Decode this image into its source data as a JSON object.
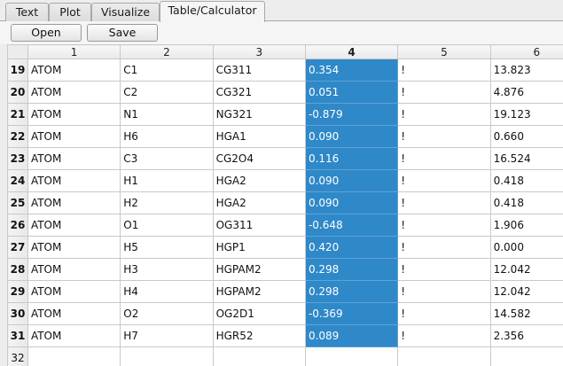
{
  "tabs": [
    {
      "label": "Text"
    },
    {
      "label": "Plot"
    },
    {
      "label": "Visualize"
    },
    {
      "label": "Table/Calculator"
    }
  ],
  "active_tab": "Table/Calculator",
  "toolbar": {
    "open_label": "Open",
    "save_label": "Save"
  },
  "grid": {
    "columns": [
      "1",
      "2",
      "3",
      "4",
      "5",
      "6"
    ],
    "selected_column": "4",
    "selection_color": "#2f88c8",
    "rows": [
      {
        "n": "19",
        "cells": [
          "ATOM",
          "C1",
          "CG311",
          "0.354",
          "!",
          "13.823"
        ]
      },
      {
        "n": "20",
        "cells": [
          "ATOM",
          "C2",
          "CG321",
          "0.051",
          "!",
          "4.876"
        ]
      },
      {
        "n": "21",
        "cells": [
          "ATOM",
          "N1",
          "NG321",
          "-0.879",
          "!",
          "19.123"
        ]
      },
      {
        "n": "22",
        "cells": [
          "ATOM",
          "H6",
          "HGA1",
          "0.090",
          "!",
          "0.660"
        ]
      },
      {
        "n": "23",
        "cells": [
          "ATOM",
          "C3",
          "CG2O4",
          "0.116",
          "!",
          "16.524"
        ]
      },
      {
        "n": "24",
        "cells": [
          "ATOM",
          "H1",
          "HGA2",
          "0.090",
          "!",
          "0.418"
        ]
      },
      {
        "n": "25",
        "cells": [
          "ATOM",
          "H2",
          "HGA2",
          "0.090",
          "!",
          "0.418"
        ]
      },
      {
        "n": "26",
        "cells": [
          "ATOM",
          "O1",
          "OG311",
          "-0.648",
          "!",
          "1.906"
        ]
      },
      {
        "n": "27",
        "cells": [
          "ATOM",
          "H5",
          "HGP1",
          "0.420",
          "!",
          "0.000"
        ]
      },
      {
        "n": "28",
        "cells": [
          "ATOM",
          "H3",
          "HGPAM2",
          "0.298",
          "!",
          "12.042"
        ]
      },
      {
        "n": "29",
        "cells": [
          "ATOM",
          "H4",
          "HGPAM2",
          "0.298",
          "!",
          "12.042"
        ]
      },
      {
        "n": "30",
        "cells": [
          "ATOM",
          "O2",
          "OG2D1",
          "-0.369",
          "!",
          "14.582"
        ]
      },
      {
        "n": "31",
        "cells": [
          "ATOM",
          "H7",
          "HGR52",
          "0.089",
          "!",
          "2.356"
        ]
      },
      {
        "n": "32",
        "cells": [
          "",
          "",
          "",
          "",
          "",
          ""
        ]
      }
    ]
  }
}
